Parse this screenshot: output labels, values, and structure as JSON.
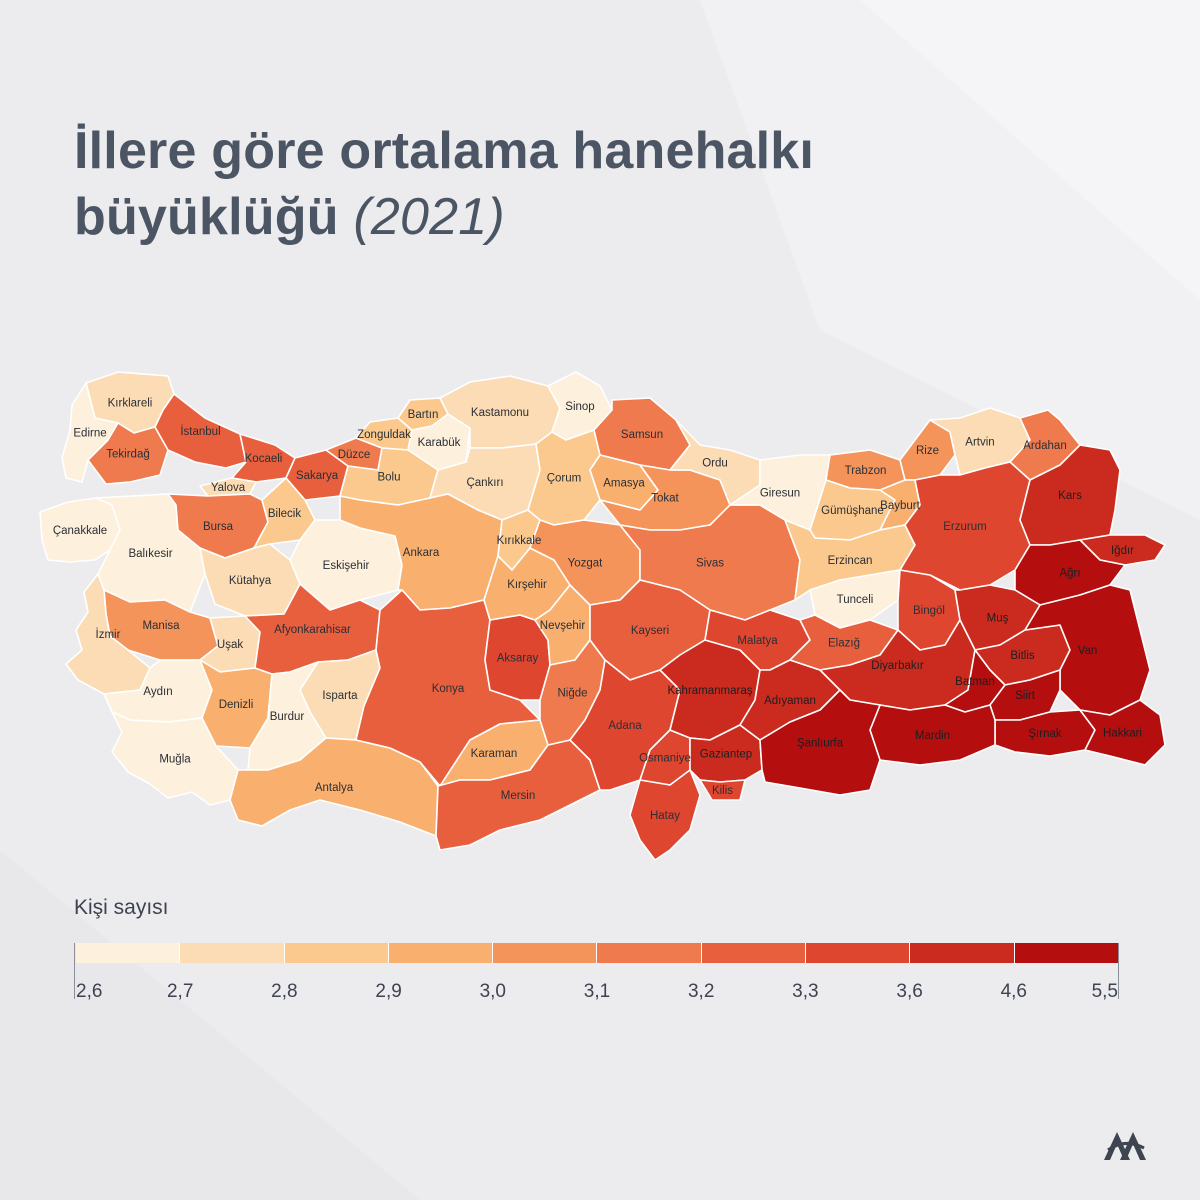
{
  "title": {
    "main": "İllere göre ortalama hanehalkı büyüklüğü",
    "year": "(2021)"
  },
  "legend": {
    "title": "Kişi sayısı",
    "ticks": [
      "2,6",
      "2,7",
      "2,8",
      "2,9",
      "3,0",
      "3,1",
      "3,2",
      "3,3",
      "3,6",
      "4,6",
      "5,5"
    ],
    "colors": [
      "#fdf0dc",
      "#fcdcb4",
      "#fbc98d",
      "#f9b06f",
      "#f4945b",
      "#ef7a4d",
      "#e85f3d",
      "#de4630",
      "#cb2b1f",
      "#b40e0e"
    ]
  },
  "colors": {
    "background": "#ececee",
    "title": "#4b5563",
    "border": "#ffffff"
  },
  "logo": {
    "name": "AA-logo"
  },
  "provinces": [
    {
      "name": "Kırklareli",
      "cls": 1
    },
    {
      "name": "Edirne",
      "cls": 0
    },
    {
      "name": "Tekirdağ",
      "cls": 5
    },
    {
      "name": "İstanbul",
      "cls": 6
    },
    {
      "name": "Çanakkale",
      "cls": 0
    },
    {
      "name": "Balıkesir",
      "cls": 0
    },
    {
      "name": "Yalova",
      "cls": 1
    },
    {
      "name": "Kocaeli",
      "cls": 6
    },
    {
      "name": "Sakarya",
      "cls": 6
    },
    {
      "name": "Düzce",
      "cls": 5
    },
    {
      "name": "Bursa",
      "cls": 5
    },
    {
      "name": "Bilecik",
      "cls": 2
    },
    {
      "name": "Bolu",
      "cls": 2
    },
    {
      "name": "Zonguldak",
      "cls": 2
    },
    {
      "name": "Bartın",
      "cls": 2
    },
    {
      "name": "Karabük",
      "cls": 0
    },
    {
      "name": "Kastamonu",
      "cls": 1
    },
    {
      "name": "Sinop",
      "cls": 0
    },
    {
      "name": "Çankırı",
      "cls": 1
    },
    {
      "name": "Ankara",
      "cls": 3
    },
    {
      "name": "Eskişehir",
      "cls": 0
    },
    {
      "name": "Kütahya",
      "cls": 1
    },
    {
      "name": "Manisa",
      "cls": 4
    },
    {
      "name": "İzmir",
      "cls": 1
    },
    {
      "name": "Aydın",
      "cls": 0
    },
    {
      "name": "Muğla",
      "cls": 0
    },
    {
      "name": "Denizli",
      "cls": 3
    },
    {
      "name": "Uşak",
      "cls": 1
    },
    {
      "name": "Afyonkarahisar",
      "cls": 6
    },
    {
      "name": "Burdur",
      "cls": 0
    },
    {
      "name": "Isparta",
      "cls": 1
    },
    {
      "name": "Antalya",
      "cls": 3
    },
    {
      "name": "Konya",
      "cls": 6
    },
    {
      "name": "Karaman",
      "cls": 3
    },
    {
      "name": "Mersin",
      "cls": 6
    },
    {
      "name": "Aksaray",
      "cls": 7
    },
    {
      "name": "Niğde",
      "cls": 5
    },
    {
      "name": "Nevşehir",
      "cls": 3
    },
    {
      "name": "Kırşehir",
      "cls": 3
    },
    {
      "name": "Kırıkkale",
      "cls": 2
    },
    {
      "name": "Çorum",
      "cls": 2
    },
    {
      "name": "Yozgat",
      "cls": 4
    },
    {
      "name": "Samsun",
      "cls": 5
    },
    {
      "name": "Amasya",
      "cls": 3
    },
    {
      "name": "Tokat",
      "cls": 4
    },
    {
      "name": "Sivas",
      "cls": 5
    },
    {
      "name": "Kayseri",
      "cls": 6
    },
    {
      "name": "Adana",
      "cls": 7
    },
    {
      "name": "Osmaniye",
      "cls": 7
    },
    {
      "name": "Hatay",
      "cls": 7
    },
    {
      "name": "Kahramanmaraş",
      "cls": 8
    },
    {
      "name": "Gaziantep",
      "cls": 8
    },
    {
      "name": "Kilis",
      "cls": 7
    },
    {
      "name": "Malatya",
      "cls": 7
    },
    {
      "name": "Adıyaman",
      "cls": 8
    },
    {
      "name": "Ordu",
      "cls": 1
    },
    {
      "name": "Giresun",
      "cls": 0
    },
    {
      "name": "Trabzon",
      "cls": 4
    },
    {
      "name": "Rize",
      "cls": 4
    },
    {
      "name": "Artvin",
      "cls": 1
    },
    {
      "name": "Gümüşhane",
      "cls": 2
    },
    {
      "name": "Bayburt",
      "cls": 3
    },
    {
      "name": "Erzincan",
      "cls": 2
    },
    {
      "name": "Tunceli",
      "cls": 0
    },
    {
      "name": "Elazığ",
      "cls": 6
    },
    {
      "name": "Bingöl",
      "cls": 7
    },
    {
      "name": "Erzurum",
      "cls": 7
    },
    {
      "name": "Ardahan",
      "cls": 5
    },
    {
      "name": "Kars",
      "cls": 8
    },
    {
      "name": "Iğdır",
      "cls": 8
    },
    {
      "name": "Ağrı",
      "cls": 9
    },
    {
      "name": "Muş",
      "cls": 8
    },
    {
      "name": "Bitlis",
      "cls": 8
    },
    {
      "name": "Van",
      "cls": 9
    },
    {
      "name": "Diyarbakır",
      "cls": 8
    },
    {
      "name": "Batman",
      "cls": 9
    },
    {
      "name": "Siirt",
      "cls": 9
    },
    {
      "name": "Şırnak",
      "cls": 9
    },
    {
      "name": "Hakkari",
      "cls": 9
    },
    {
      "name": "Mardin",
      "cls": 9
    },
    {
      "name": "Şanlıurfa",
      "cls": 9
    }
  ]
}
